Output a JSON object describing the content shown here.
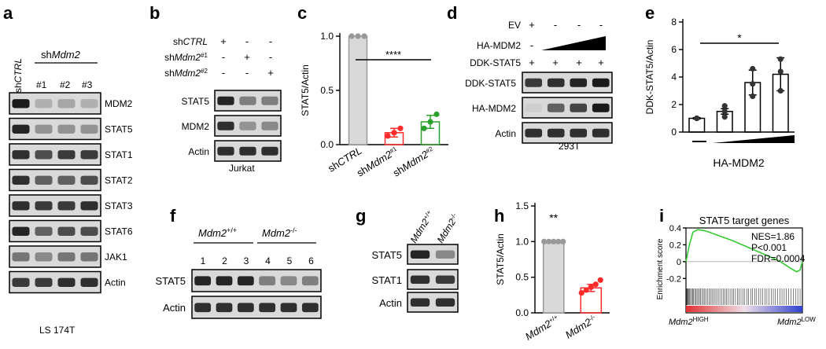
{
  "panels": {
    "a": {
      "letter": "a",
      "ctrl_label_prefix": "sh",
      "ctrl_label_em": "CTRL",
      "kd_label_prefix": "sh",
      "kd_label_em": "Mdm2",
      "lanes": [
        "#1",
        "#2",
        "#3"
      ],
      "blots": [
        "MDM2",
        "STAT5",
        "STAT1",
        "STAT2",
        "STAT3",
        "STAT6",
        "JAK1",
        "Actin"
      ],
      "cell_line": "LS 174T"
    },
    "b": {
      "letter": "b",
      "rows": [
        {
          "prefix": "sh",
          "em": "CTRL",
          "sup": "",
          "signs": [
            "+",
            "-",
            "-"
          ]
        },
        {
          "prefix": "sh",
          "em": "Mdm2",
          "sup": "#1",
          "signs": [
            "-",
            "+",
            "-"
          ]
        },
        {
          "prefix": "sh",
          "em": "Mdm2",
          "sup": "#2",
          "signs": [
            "-",
            "-",
            "+"
          ]
        }
      ],
      "blots": [
        "STAT5",
        "MDM2",
        "Actin"
      ],
      "cell_line": "Jurkat"
    },
    "d": {
      "letter": "d",
      "rows": [
        {
          "label": "EV",
          "signs": [
            "+",
            "-",
            "-",
            "-"
          ]
        },
        {
          "label": "HA-MDM2",
          "signs": [
            "-",
            "",
            "",
            ""
          ]
        },
        {
          "label": "DDK-STAT5",
          "signs": [
            "+",
            "+",
            "+",
            "+"
          ]
        }
      ],
      "blots": [
        "DDK-STAT5",
        "HA-MDM2",
        "Actin"
      ],
      "cell_line": "293T"
    },
    "f": {
      "letter": "f",
      "group1_em": "Mdm2",
      "group1_sup": "+/+",
      "group2_em": "Mdm2",
      "group2_sup": "-/-",
      "lanes": [
        "1",
        "2",
        "3",
        "4",
        "5",
        "6"
      ],
      "blots": [
        "STAT5",
        "Actin"
      ]
    },
    "g": {
      "letter": "g",
      "lane1_em": "Mdm2",
      "lane1_sup": "+/+",
      "lane2_em": "Mdm2",
      "lane2_sup": "-/-",
      "blots": [
        "STAT5",
        "STAT1",
        "Actin"
      ]
    },
    "c": {
      "letter": "c"
    },
    "e": {
      "letter": "e"
    },
    "h": {
      "letter": "h"
    },
    "i": {
      "letter": "i"
    }
  },
  "chart_data": [
    {
      "id": "c",
      "type": "bar",
      "ylabel": "STAT5/Actin",
      "ylim": [
        0,
        1.0
      ],
      "yticks": [
        "0.0",
        "0.5",
        "1.0"
      ],
      "categories": [
        {
          "prefix": "sh",
          "em": "CTRL",
          "sup": ""
        },
        {
          "prefix": "sh",
          "em": "Mdm2",
          "sup": "#1"
        },
        {
          "prefix": "sh",
          "em": "Mdm2",
          "sup": "#2"
        }
      ],
      "values": [
        1.0,
        0.11,
        0.21
      ],
      "errors": [
        0.0,
        0.04,
        0.06
      ],
      "points": [
        [
          1.0,
          1.0,
          1.0
        ],
        [
          0.08,
          0.11,
          0.15
        ],
        [
          0.15,
          0.21,
          0.28
        ]
      ],
      "colors": [
        "#999999",
        "#ff2b2b",
        "#2ca02c"
      ],
      "significance": "****"
    },
    {
      "id": "e",
      "type": "bar",
      "ylabel": "DDK-STAT5/Actin",
      "xlabel": "HA-MDM2",
      "ylim": [
        0,
        8
      ],
      "yticks": [
        "0",
        "2",
        "4",
        "6",
        "8"
      ],
      "values": [
        1.0,
        1.5,
        3.6,
        4.2
      ],
      "errors": [
        0.05,
        0.2,
        0.9,
        1.2
      ],
      "points": [
        [
          1.0,
          1.0,
          1.0
        ],
        [
          1.1,
          1.5,
          1.9
        ],
        [
          2.6,
          3.5,
          4.6
        ],
        [
          3.0,
          4.4,
          5.3
        ]
      ],
      "significance": "*"
    },
    {
      "id": "h",
      "type": "bar",
      "ylabel": "STAT5/Actin",
      "ylim": [
        0,
        1.5
      ],
      "yticks": [
        "0.0",
        "0.5",
        "1.0",
        "1.5"
      ],
      "categories": [
        {
          "em": "Mdm2",
          "sup": "+/+"
        },
        {
          "em": "Mdm2",
          "sup": "-/-"
        }
      ],
      "values": [
        1.0,
        0.35
      ],
      "errors": [
        0.0,
        0.05
      ],
      "points": [
        [
          1.0,
          1.0,
          1.0,
          1.0,
          1.0
        ],
        [
          0.28,
          0.32,
          0.36,
          0.4,
          0.46
        ]
      ],
      "colors": [
        "#999999",
        "#ff2b2b"
      ],
      "significance": "**"
    },
    {
      "id": "i",
      "type": "line",
      "title": "STAT5 target genes",
      "ylabel": "Enrichment score",
      "ylim": [
        -0.3,
        0.4
      ],
      "yticks": [
        "0.4",
        "0.2",
        "0",
        "-0.2"
      ],
      "stats": [
        "NES=1.86",
        "P<0.001",
        "FDR=0.0004"
      ],
      "left_label_em": "Mdm2",
      "left_label_sup": "HIGH",
      "right_label_em": "Mdm2",
      "right_label_sup": "LOW",
      "x": [
        0,
        0.03,
        0.06,
        0.1,
        0.15,
        0.2,
        0.3,
        0.4,
        0.5,
        0.6,
        0.7,
        0.8,
        0.9,
        0.95,
        0.98,
        1.0
      ],
      "y": [
        0,
        0.2,
        0.35,
        0.38,
        0.37,
        0.35,
        0.3,
        0.25,
        0.19,
        0.13,
        0.07,
        0.01,
        -0.08,
        -0.12,
        -0.1,
        0
      ],
      "line_color": "#33cc33"
    }
  ]
}
